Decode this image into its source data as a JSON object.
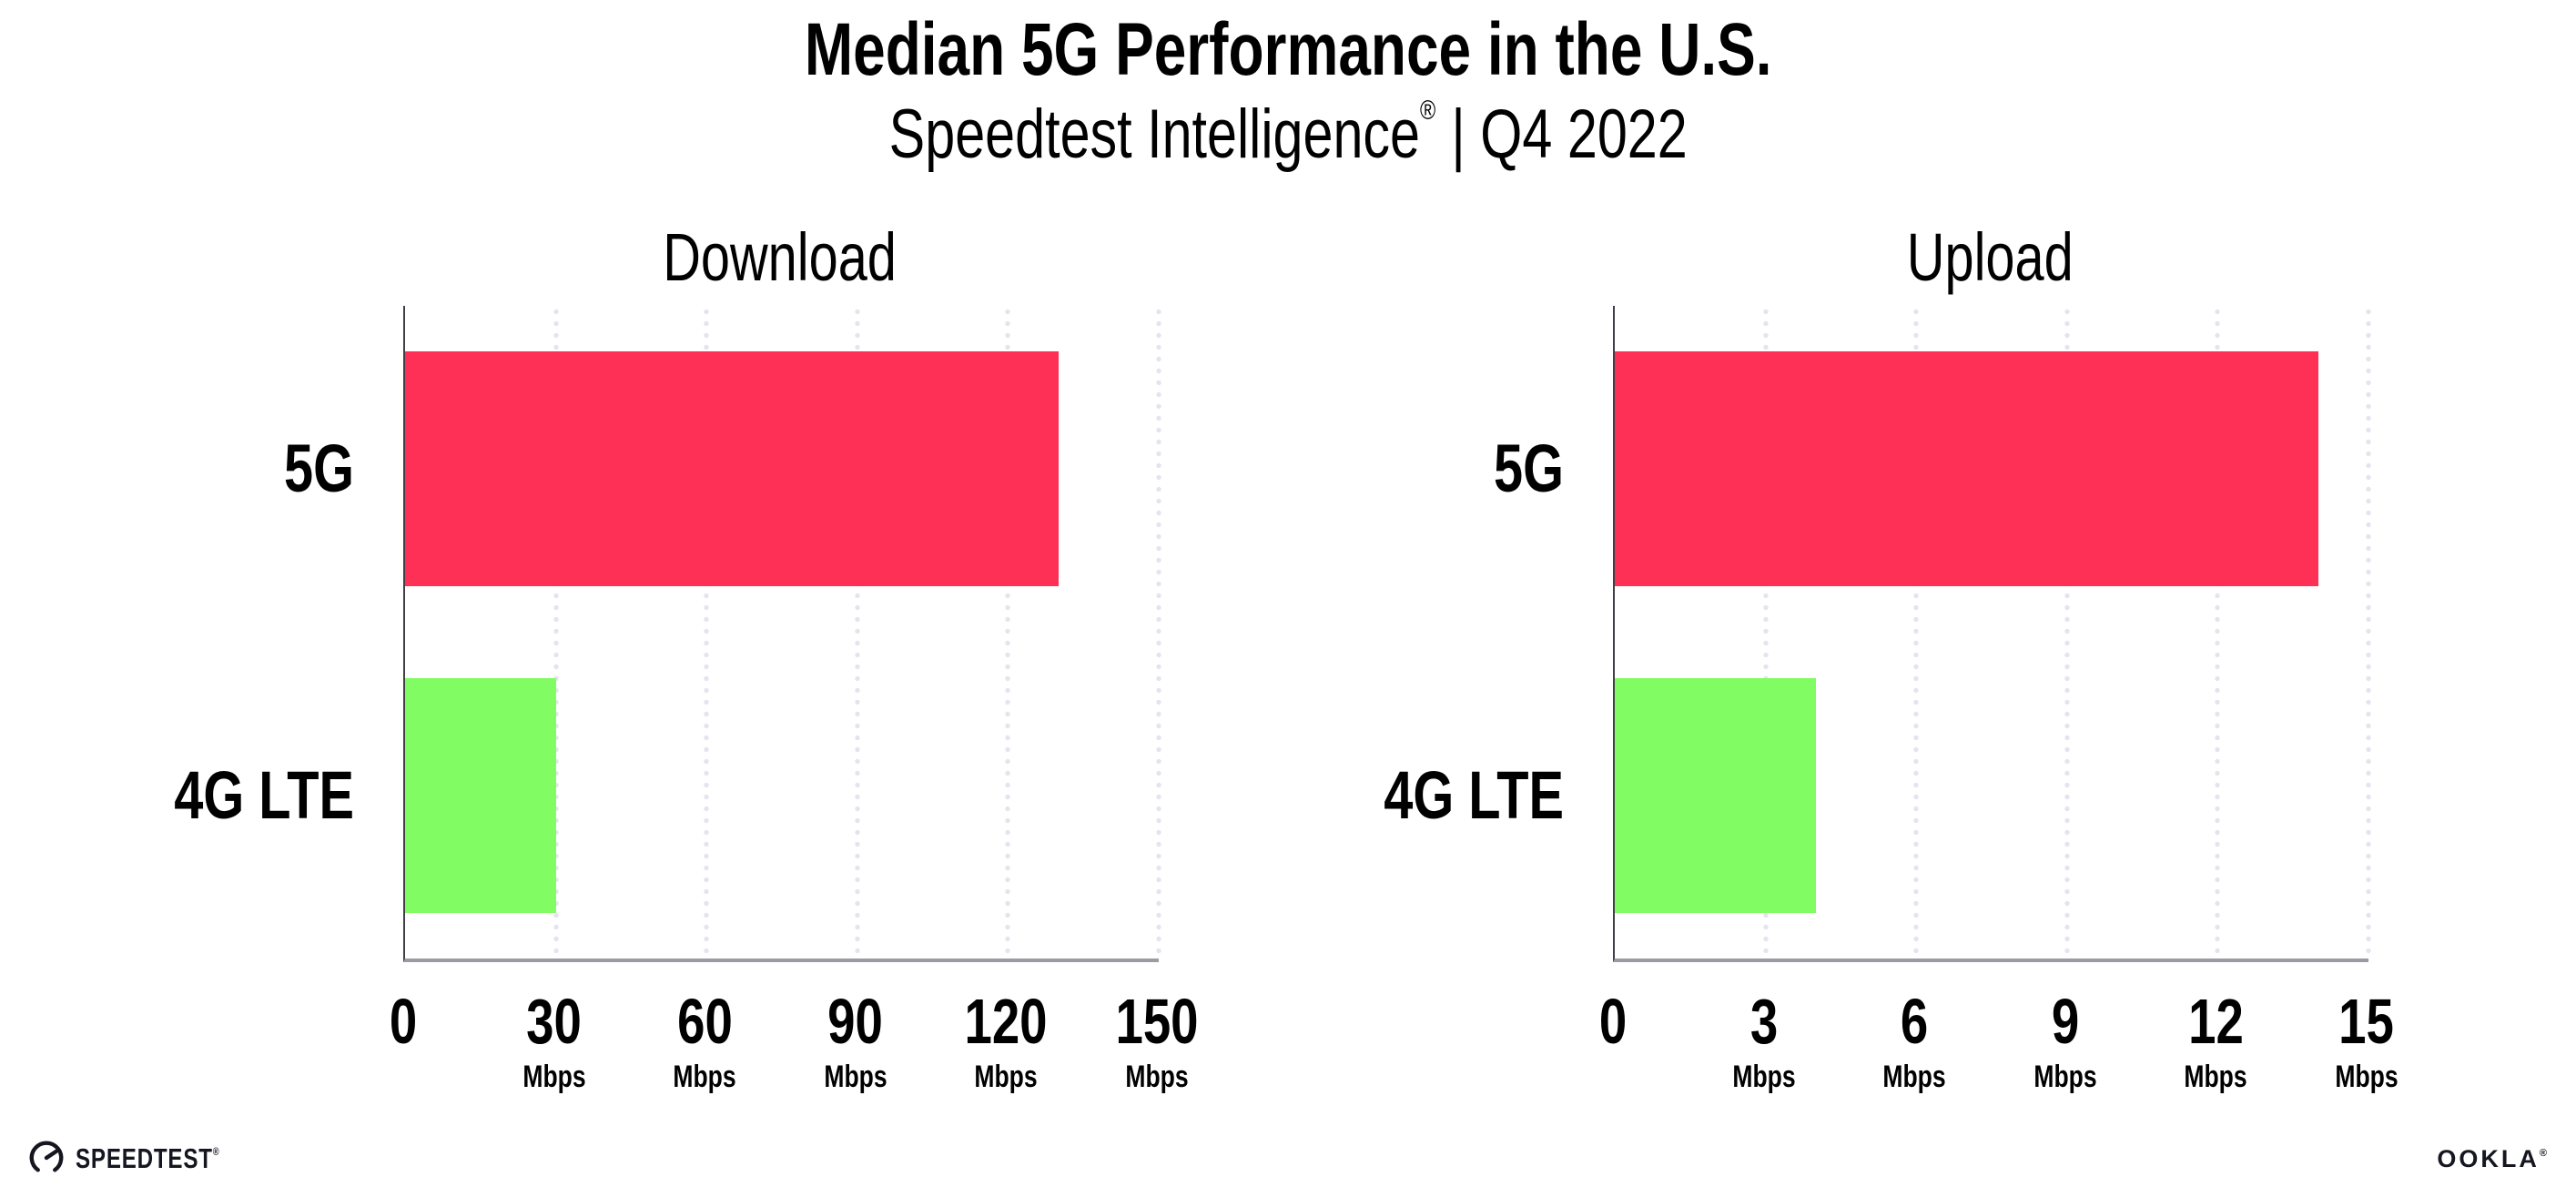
{
  "page": {
    "title": "Median 5G Performance in the U.S.",
    "subtitle": {
      "brand": "Speedtest Intelligence",
      "reg": "®",
      "rest": "| Q4 2022"
    }
  },
  "colors": {
    "bar_5g": "#ff3056",
    "bar_4g_lte": "#82fc63",
    "gridline": "#e4e4ef",
    "axis_y": "#3f3f46",
    "axis_x": "#9b9ba3",
    "text": "#000000",
    "logo": "#15161f"
  },
  "chart_data": [
    {
      "type": "bar",
      "orientation": "horizontal",
      "title": "Download",
      "categories": [
        "5G",
        "4G LTE"
      ],
      "values": [
        130,
        30
      ],
      "unit": "Mbps",
      "xlim": [
        0,
        150
      ],
      "xticks": [
        0,
        30,
        60,
        90,
        120,
        150
      ],
      "bar_colors": [
        "#ff3056",
        "#82fc63"
      ],
      "grid": "dotted vertical gridline at each tick",
      "legend": "none"
    },
    {
      "type": "bar",
      "orientation": "horizontal",
      "title": "Upload",
      "categories": [
        "5G",
        "4G LTE"
      ],
      "values": [
        14,
        4
      ],
      "unit": "Mbps",
      "xlim": [
        0,
        15
      ],
      "xticks": [
        0,
        3,
        6,
        9,
        12,
        15
      ],
      "bar_colors": [
        "#ff3056",
        "#82fc63"
      ],
      "grid": "dotted vertical gridline at each tick",
      "legend": "none"
    }
  ],
  "footer": {
    "speedtest": {
      "label": "SPEEDTEST",
      "reg": "®"
    },
    "ookla": {
      "label": "OOKLA",
      "reg": "®"
    }
  }
}
